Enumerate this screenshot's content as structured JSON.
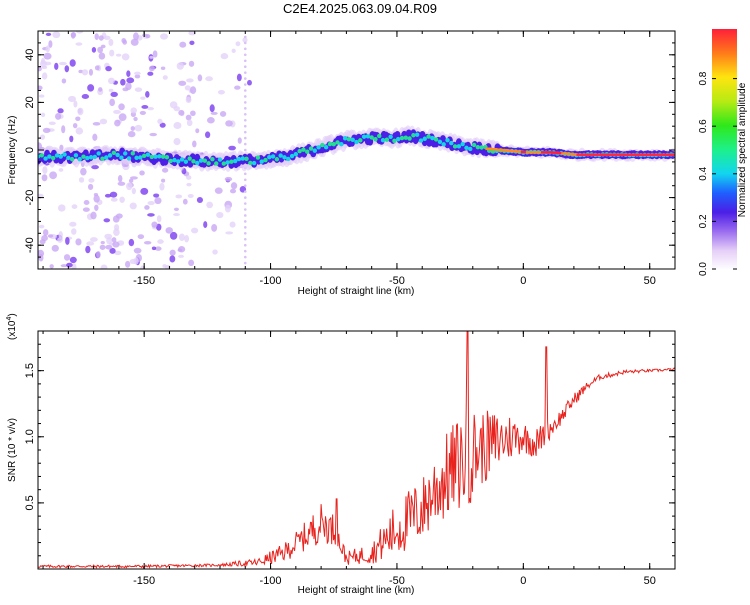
{
  "title": "C2E4.2025.063.09.04.R09",
  "colors": {
    "snr_line": "#e8221d",
    "background": "#ffffff",
    "axis": "#000000"
  },
  "chart_data": [
    {
      "type": "heatmap",
      "xlabel": "Height of straight line (km)",
      "ylabel": "Frequency (Hz)",
      "xlim": [
        -192,
        60
      ],
      "ylim": [
        -50,
        50
      ],
      "xticks": [
        -150,
        -100,
        -50,
        0,
        50
      ],
      "xtick_labels": [
        "-150",
        "-100",
        "-50",
        "0",
        "50"
      ],
      "yticks": [
        -40,
        -20,
        0,
        20,
        40
      ],
      "ytick_labels": [
        "-40",
        "-20",
        "0",
        "20",
        "40"
      ],
      "ridge": {
        "description_points_x": [
          -192,
          -175,
          -160,
          -140,
          -120,
          -100,
          -90,
          -80,
          -70,
          -60,
          -50,
          -45,
          -40,
          -30,
          -20,
          -10,
          0,
          10,
          20,
          30,
          40,
          50,
          60
        ],
        "description_points_y": [
          -3,
          -3,
          -2,
          -4,
          -5,
          -4,
          -2,
          1,
          4,
          5,
          5,
          6,
          5,
          3,
          1,
          0,
          -1,
          -1,
          -2,
          -2,
          -2,
          -2,
          -2
        ]
      },
      "colorbar": {
        "label": "Normalized spectral amplitude",
        "range": [
          0,
          1
        ],
        "ticks": [
          0.0,
          0.2,
          0.4,
          0.6,
          0.8
        ],
        "tick_labels": [
          "0.0",
          "0.2",
          "0.4",
          "0.6",
          "0.8"
        ]
      }
    },
    {
      "type": "line",
      "xlabel": "Height of straight line (km)",
      "ylabel": "SNR (10 * v/v)",
      "multiplier_label": "(x10",
      "multiplier_exp": "4",
      "xlim": [
        -192,
        60
      ],
      "ylim": [
        0,
        1.8
      ],
      "xticks": [
        -150,
        -100,
        -50,
        0,
        50
      ],
      "xtick_labels": [
        "-150",
        "-100",
        "-50",
        "0",
        "50"
      ],
      "yticks": [
        0.5,
        1.0,
        1.5
      ],
      "ytick_labels": [
        "0.5",
        "1.0",
        "1.5"
      ],
      "series": [
        {
          "trend_x": [
            -192,
            -150,
            -120,
            -105,
            -95,
            -88,
            -80,
            -75,
            -70,
            -60,
            -50,
            -40,
            -35,
            -28,
            -22,
            -18,
            -12,
            -5,
            0,
            5,
            10,
            15,
            20,
            25,
            30,
            40,
            50,
            60
          ],
          "trend_y": [
            0.02,
            0.02,
            0.03,
            0.05,
            0.12,
            0.22,
            0.35,
            0.3,
            0.08,
            0.12,
            0.3,
            0.45,
            0.6,
            0.75,
            0.85,
            0.9,
            0.95,
            1.0,
            1.0,
            0.95,
            1.05,
            1.15,
            1.28,
            1.38,
            1.45,
            1.49,
            1.5,
            1.51
          ],
          "noise_amp": [
            0.01,
            0.01,
            0.01,
            0.03,
            0.07,
            0.1,
            0.15,
            0.12,
            0.05,
            0.08,
            0.22,
            0.25,
            0.3,
            0.35,
            0.4,
            0.3,
            0.25,
            0.18,
            0.12,
            0.12,
            0.08,
            0.06,
            0.05,
            0.03,
            0.02,
            0.015,
            0.01,
            0.01
          ],
          "peaks_x": [
            -74,
            -22,
            9
          ],
          "peaks_y": [
            0.53,
            1.8,
            1.68
          ]
        }
      ]
    }
  ]
}
